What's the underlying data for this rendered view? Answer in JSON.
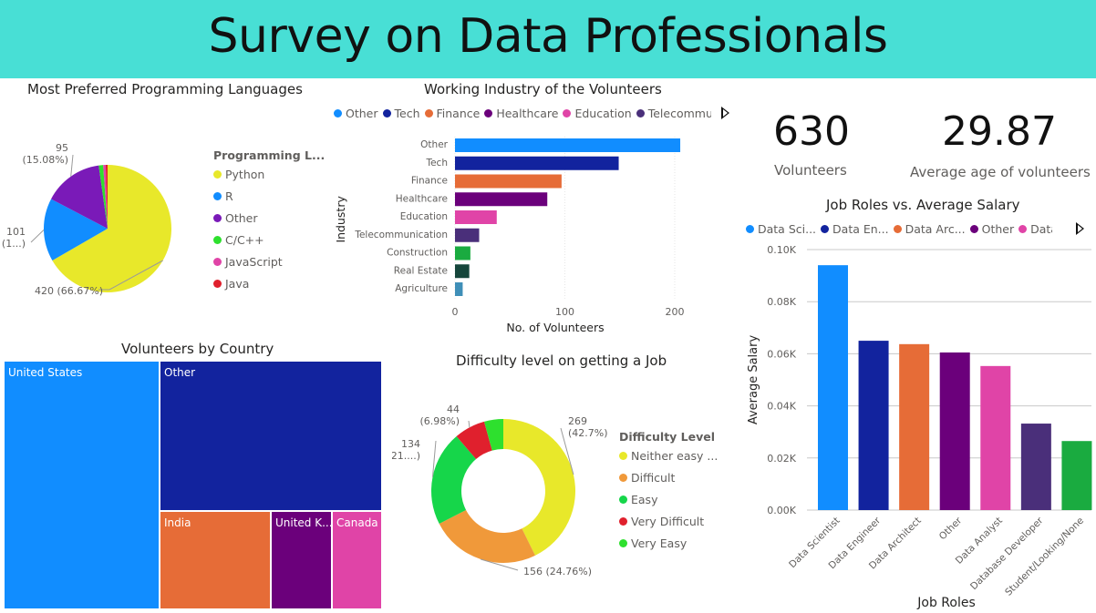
{
  "header": {
    "title": "Survey on Data Professionals",
    "bg": "#48DFD5"
  },
  "kpis": [
    {
      "value": "630",
      "label": "Volunteers"
    },
    {
      "value": "29.87",
      "label": "Average age of volunteers"
    }
  ],
  "chart_data": [
    {
      "id": "languages",
      "type": "pie",
      "title": "Most Preferred Programming Languages",
      "legend_title": "Programming L...",
      "legend_position": "right",
      "slices": [
        {
          "name": "Python",
          "value": 420,
          "color": "#E8E82A"
        },
        {
          "name": "R",
          "value": 101,
          "color": "#118DFF"
        },
        {
          "name": "Other",
          "value": 95,
          "color": "#7A1AB8"
        },
        {
          "name": "C/C++",
          "value": 7,
          "color": "#2EE02E"
        },
        {
          "name": "JavaScript",
          "value": 4,
          "color": "#E044A7"
        },
        {
          "name": "Java",
          "value": 3,
          "color": "#E0202D"
        }
      ],
      "data_labels": [
        "420 (66.67%)",
        "101 (1...)",
        "95 (15.08%)"
      ]
    },
    {
      "id": "industry",
      "type": "bar",
      "orientation": "horizontal",
      "title": "Working Industry of the Volunteers",
      "xlabel": "No. of Volunteers",
      "ylabel": "Industry",
      "xlim": [
        0,
        230
      ],
      "xticks": [
        "0",
        "100",
        "200"
      ],
      "grid": true,
      "legend_position": "top",
      "legend": [
        "Other",
        "Tech",
        "Finance",
        "Healthcare",
        "Education",
        "Telecommunicat..."
      ],
      "categories": [
        "Other",
        "Tech",
        "Finance",
        "Healthcare",
        "Education",
        "Telecommunication",
        "Construction",
        "Real Estate",
        "Agriculture"
      ],
      "values": [
        205,
        149,
        97,
        84,
        38,
        22,
        14,
        13,
        7
      ],
      "colors": [
        "#118DFF",
        "#12239E",
        "#E66C37",
        "#6B007B",
        "#E044A7",
        "#4A2F7A",
        "#1AAB40",
        "#15463B",
        "#3F8FB8"
      ]
    },
    {
      "id": "salary",
      "type": "bar",
      "orientation": "vertical",
      "title": "Job Roles vs. Average Salary",
      "xlabel": "Job Roles",
      "ylabel": "Average Salary",
      "ylim": [
        0,
        0.1
      ],
      "yticks": [
        "0.00K",
        "0.02K",
        "0.04K",
        "0.06K",
        "0.08K",
        "0.10K"
      ],
      "grid": true,
      "legend_position": "top",
      "legend": [
        "Data Sci...",
        "Data En...",
        "Data Arc...",
        "Other",
        "Data An..."
      ],
      "categories": [
        "Data Scientist",
        "Data Engineer",
        "Data Architect",
        "Other",
        "Data Analyst",
        "Database Developer",
        "Student/Looking/None"
      ],
      "values": [
        0.094,
        0.065,
        0.0637,
        0.0605,
        0.0553,
        0.0332,
        0.0265
      ],
      "colors": [
        "#118DFF",
        "#12239E",
        "#E66C37",
        "#6B007B",
        "#E044A7",
        "#4A2F7A",
        "#1AAB40"
      ]
    },
    {
      "id": "country",
      "type": "treemap",
      "title": "Volunteers by Country",
      "tiles": [
        {
          "name": "United States",
          "color": "#118DFF"
        },
        {
          "name": "Other",
          "color": "#12239E"
        },
        {
          "name": "India",
          "color": "#E66C37"
        },
        {
          "name": "United K...",
          "color": "#6B007B"
        },
        {
          "name": "Canada",
          "color": "#E044A7"
        }
      ]
    },
    {
      "id": "difficulty",
      "type": "pie",
      "subtype": "donut",
      "title": "Difficulty level on getting a Job",
      "legend_title": "Difficulty Level",
      "legend_position": "right",
      "slices": [
        {
          "name": "Neither easy ...",
          "value": 269,
          "color": "#E8E82A"
        },
        {
          "name": "Difficult",
          "value": 156,
          "color": "#F0993A"
        },
        {
          "name": "Easy",
          "value": 134,
          "color": "#16D64A"
        },
        {
          "name": "Very Difficult",
          "value": 44,
          "color": "#E0202D"
        },
        {
          "name": "Very Easy",
          "value": 27,
          "color": "#2EE02E"
        }
      ],
      "data_labels": [
        "269 (42.7%)",
        "156 (24.76%)",
        "134 (21....)",
        "44 (6.98%)"
      ]
    }
  ]
}
